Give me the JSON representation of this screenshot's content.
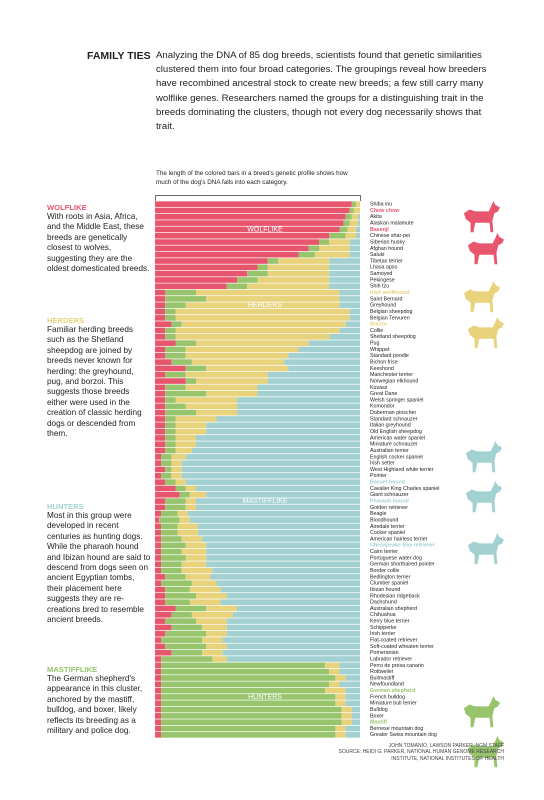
{
  "header": {
    "title": "FAMILY TIES",
    "text": "Analyzing the DNA of 85 dog breeds, scientists found that genetic similarities clustered them into four broad categories. The groupings reveal how breeders have recombined ancestral stock to create new breeds; a few still carry many wolflike genes. Researchers named the groups for a distinguishing trait in the breeds dominating the clusters, though not every dog necessarily shows that trait."
  },
  "chart_data": {
    "type": "stacked-bar",
    "orientation": "horizontal",
    "note": "The length of the colored bars in a breed's genetic profile shows how much of the dog's DNA falls into each category.",
    "xlim": [
      0,
      100
    ],
    "categories": [
      "Shiba inu",
      "Chow chow",
      "Akita",
      "Alaskan malamute",
      "Basenji",
      "Chinese shar-pei",
      "Siberian husky",
      "Afghan hound",
      "Saluki",
      "Tibetan terrier",
      "Lhasa apso",
      "Samoyed",
      "Pekingese",
      "Shih tzu",
      "Irish wolfhound",
      "Saint Bernard",
      "Greyhound",
      "Belgian sheepdog",
      "Belgian Tervuren",
      "Borzoi",
      "Collie",
      "Shetland sheepdog",
      "Pug",
      "Whippet",
      "Standard poodle",
      "Bichon frise",
      "Keeshond",
      "Manchester terrier",
      "Norwegian elkhound",
      "Kuvasz",
      "Great Dane",
      "Welsh springer spaniel",
      "Komondor",
      "Doberman pinscher",
      "Standard schnauzer",
      "Italian greyhound",
      "Old English sheepdog",
      "American water spaniel",
      "Miniature schnauzer",
      "Australian terrier",
      "English cocker spaniel",
      "Irish setter",
      "West Highland white terrier",
      "Pointer",
      "Basset hound",
      "Cavalier King Charles spaniel",
      "Giant schnauzer",
      "Pharaoh hound",
      "Golden retriever",
      "Beagle",
      "Bloodhound",
      "Airedale terrier",
      "Cocker spaniel",
      "American hairless terrier",
      "Chesapeake Bay retriever",
      "Cairn terrier",
      "Portuguese water dog",
      "German shorthaired pointer",
      "Border collie",
      "Bedlington terrier",
      "Clumber spaniel",
      "Ibizan hound",
      "Rhodesian ridgeback",
      "Dachshund",
      "Australian shepherd",
      "Chihuahua",
      "Kerry blue terrier",
      "Schipperke",
      "Irish terrier",
      "Flat-coated retriever",
      "Soft-coated wheaten terrier",
      "Pomeranian",
      "Labrador retriever",
      "Perro de presa canario",
      "Rottweiler",
      "Bullmastiff",
      "Newfoundland",
      "German shepherd",
      "French bulldog",
      "Miniature bull terrier",
      "Bulldog",
      "Boxer",
      "Mastiff",
      "Bernese mountain dog",
      "Greater Swiss mountain dog"
    ],
    "series": [
      {
        "name": "WOLFLIKE",
        "color": "#e8566d",
        "highlight": [
          "Chow chow",
          "Basenji"
        ],
        "description": "With roots in Asia, Africa, and the Middle East, these breeds are genetically closest to wolves, suggesting they are the oldest domesticated breeds.",
        "values": [
          96,
          95,
          93,
          92,
          90,
          85,
          80,
          75,
          70,
          55,
          50,
          45,
          40,
          35,
          5,
          5,
          5,
          5,
          5,
          8,
          5,
          5,
          10,
          5,
          5,
          8,
          15,
          5,
          15,
          5,
          5,
          5,
          5,
          5,
          5,
          5,
          5,
          5,
          5,
          5,
          3,
          3,
          5,
          3,
          5,
          10,
          12,
          5,
          5,
          3,
          2,
          3,
          3,
          3,
          3,
          3,
          3,
          3,
          3,
          5,
          3,
          5,
          5,
          5,
          10,
          8,
          5,
          8,
          5,
          3,
          5,
          8,
          3,
          3,
          3,
          3,
          3,
          3,
          3,
          3,
          3,
          3,
          3,
          3,
          3
        ]
      },
      {
        "name": "MASTIFFLIKE",
        "color": "#97c46c",
        "highlight": [
          "German shepherd",
          "Mastiff"
        ],
        "description": "The German shepherd's appearance in this cluster, anchored by the mastiff, bulldog, and boxer, likely reflects its breeding as a military and police dog.",
        "values": [
          2,
          2,
          3,
          3,
          4,
          8,
          5,
          5,
          8,
          5,
          5,
          10,
          10,
          10,
          15,
          20,
          10,
          5,
          5,
          5,
          5,
          5,
          10,
          10,
          10,
          10,
          10,
          10,
          5,
          10,
          20,
          5,
          10,
          15,
          5,
          5,
          5,
          5,
          5,
          5,
          5,
          5,
          3,
          5,
          5,
          5,
          5,
          10,
          10,
          8,
          10,
          8,
          8,
          10,
          12,
          10,
          12,
          10,
          10,
          10,
          15,
          12,
          15,
          12,
          15,
          10,
          15,
          15,
          20,
          20,
          20,
          15,
          25,
          80,
          82,
          85,
          82,
          80,
          85,
          85,
          88,
          88,
          88,
          85,
          85
        ]
      },
      {
        "name": "HERDERS",
        "color": "#e8d27c",
        "highlight": [
          "Irish wolfhound",
          "Borzoi"
        ],
        "description": "Familiar herding breeds such as the Shetland sheepdog are joined by breeds never known for herding: the greyhound, pug, and borzoi. This suggests those breeds either were used in the creation of classic herding dogs or descended from them.",
        "values": [
          2,
          3,
          3,
          4,
          4,
          5,
          10,
          15,
          17,
          25,
          30,
          30,
          35,
          40,
          70,
          65,
          75,
          85,
          85,
          80,
          80,
          75,
          55,
          55,
          50,
          45,
          40,
          40,
          35,
          35,
          25,
          30,
          25,
          20,
          20,
          15,
          15,
          10,
          10,
          8,
          7,
          5,
          5,
          5,
          5,
          5,
          8,
          5,
          5,
          5,
          5,
          10,
          10,
          10,
          10,
          12,
          10,
          12,
          15,
          12,
          12,
          15,
          15,
          15,
          15,
          20,
          15,
          12,
          10,
          10,
          10,
          10,
          7,
          7,
          5,
          5,
          5,
          10,
          5,
          5,
          5,
          5,
          5,
          5,
          5
        ]
      },
      {
        "name": "HUNTERS",
        "color": "#a3d1d2",
        "highlight": [
          "Basset hound",
          "Pharaoh hound",
          "Chesapeake Bay retriever"
        ],
        "description": "Most in this group were developed in recent centuries as hunting dogs. While the pharaoh hound and Ibizan hound are said to descend from dogs seen on ancient Egyptian tombs, their placement here suggests they are re-creations bred to resemble ancient breeds.",
        "values": [
          0,
          0,
          1,
          1,
          2,
          2,
          5,
          5,
          5,
          15,
          15,
          15,
          15,
          15,
          10,
          10,
          10,
          5,
          5,
          7,
          10,
          15,
          25,
          30,
          35,
          37,
          35,
          45,
          45,
          50,
          50,
          60,
          60,
          60,
          70,
          75,
          75,
          80,
          80,
          82,
          85,
          87,
          87,
          87,
          85,
          80,
          75,
          80,
          80,
          84,
          83,
          79,
          79,
          77,
          75,
          75,
          75,
          75,
          72,
          73,
          70,
          68,
          65,
          68,
          60,
          62,
          65,
          65,
          65,
          67,
          65,
          67,
          65,
          10,
          10,
          7,
          10,
          7,
          7,
          7,
          4,
          4,
          4,
          7,
          7
        ]
      }
    ]
  },
  "credits": [
    "JOHN TOMANIO, LAWSON PARKER, NGM STAFF",
    "SOURCE: HEIDI G. PARKER, NATIONAL HUMAN GENOME RESEARCH",
    "INSTITUTE, NATIONAL INSTITUTES OF HEALTH"
  ]
}
